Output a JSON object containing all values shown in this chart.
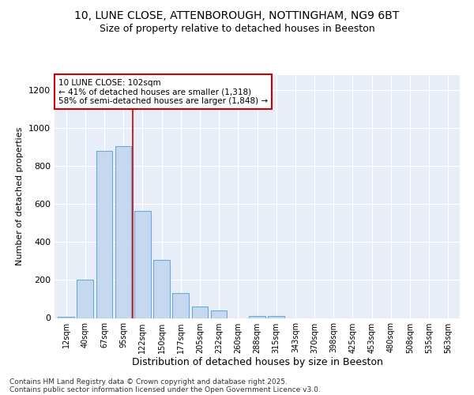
{
  "title1": "10, LUNE CLOSE, ATTENBOROUGH, NOTTINGHAM, NG9 6BT",
  "title2": "Size of property relative to detached houses in Beeston",
  "xlabel": "Distribution of detached houses by size in Beeston",
  "ylabel": "Number of detached properties",
  "categories": [
    "12sqm",
    "40sqm",
    "67sqm",
    "95sqm",
    "122sqm",
    "150sqm",
    "177sqm",
    "205sqm",
    "232sqm",
    "260sqm",
    "288sqm",
    "315sqm",
    "343sqm",
    "370sqm",
    "398sqm",
    "425sqm",
    "453sqm",
    "480sqm",
    "508sqm",
    "535sqm",
    "563sqm"
  ],
  "values": [
    5,
    200,
    880,
    905,
    565,
    305,
    130,
    60,
    40,
    0,
    10,
    10,
    0,
    0,
    0,
    0,
    0,
    0,
    0,
    0,
    0
  ],
  "bar_color": "#c5d8f0",
  "bar_edgecolor": "#6aaad8",
  "vline_x": 3.5,
  "vline_color": "#cc0000",
  "annotation_line1": "10 LUNE CLOSE: 102sqm",
  "annotation_line2": "← 41% of detached houses are smaller (1,318)",
  "annotation_line3": "58% of semi-detached houses are larger (1,848) →",
  "annotation_box_color": "#cc0000",
  "ylim": [
    0,
    1280
  ],
  "yticks": [
    0,
    200,
    400,
    600,
    800,
    1000,
    1200
  ],
  "footer1": "Contains HM Land Registry data © Crown copyright and database right 2025.",
  "footer2": "Contains public sector information licensed under the Open Government Licence v3.0.",
  "fig_bg_color": "#ffffff",
  "plot_bg_color": "#e8eef8",
  "grid_color": "#ffffff",
  "title1_fontsize": 10,
  "title2_fontsize": 9,
  "xlabel_fontsize": 9,
  "ylabel_fontsize": 8
}
